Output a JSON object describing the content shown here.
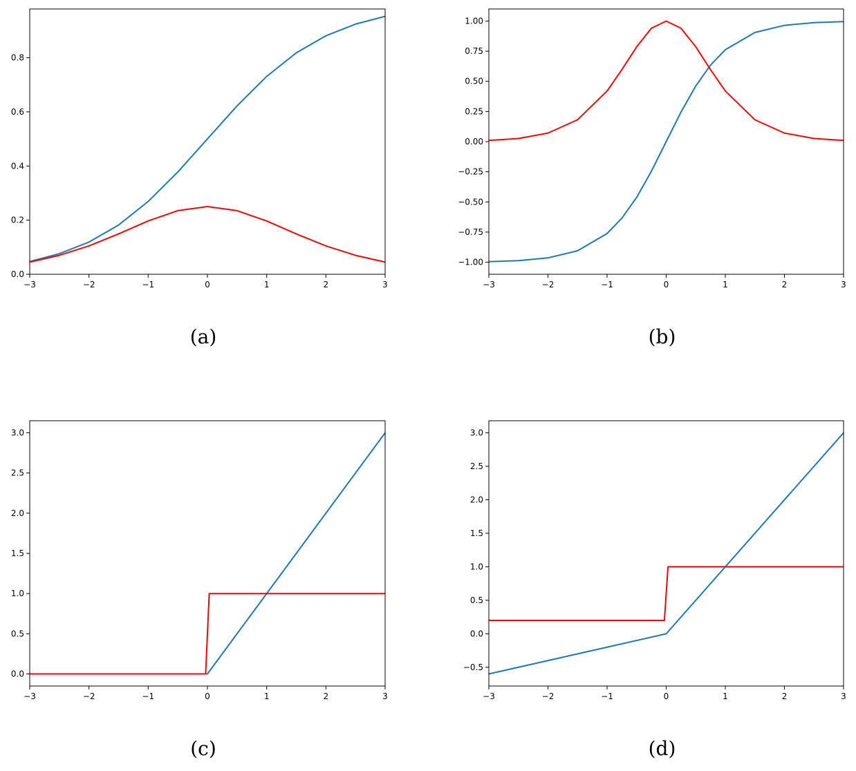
{
  "chart_data": [
    {
      "type": "line",
      "caption": "(a)",
      "xlim": [
        -3,
        3
      ],
      "ylim": [
        0,
        0.98
      ],
      "xticks": [
        -3,
        -2,
        -1,
        0,
        1,
        2,
        3
      ],
      "xtick_labels": [
        "−3",
        "−2",
        "−1",
        "0",
        "1",
        "2",
        "3"
      ],
      "yticks": [
        0,
        0.2,
        0.4,
        0.6,
        0.8
      ],
      "ytick_labels": [
        "0.0",
        "0.2",
        "0.4",
        "0.6",
        "0.8"
      ],
      "grid": false,
      "series": [
        {
          "color": "#1f77b4",
          "x": [
            -3,
            -2.5,
            -2,
            -1.5,
            -1,
            -0.5,
            0,
            0.5,
            1,
            1.5,
            2,
            2.5,
            3
          ],
          "y": [
            0.047,
            0.076,
            0.119,
            0.182,
            0.269,
            0.378,
            0.5,
            0.622,
            0.731,
            0.818,
            0.881,
            0.924,
            0.953
          ]
        },
        {
          "color": "#ff0000",
          "x": [
            -3,
            -2.5,
            -2,
            -1.5,
            -1,
            -0.5,
            0,
            0.5,
            1,
            1.5,
            2,
            2.5,
            3
          ],
          "y": [
            0.045,
            0.07,
            0.105,
            0.149,
            0.197,
            0.235,
            0.25,
            0.235,
            0.197,
            0.149,
            0.105,
            0.07,
            0.045
          ]
        }
      ]
    },
    {
      "type": "line",
      "caption": "(b)",
      "xlim": [
        -3,
        3
      ],
      "ylim": [
        -1.1,
        1.1
      ],
      "xticks": [
        -3,
        -2,
        -1,
        0,
        1,
        2,
        3
      ],
      "xtick_labels": [
        "−3",
        "−2",
        "−1",
        "0",
        "1",
        "2",
        "3"
      ],
      "yticks": [
        -1,
        -0.75,
        -0.5,
        -0.25,
        0,
        0.25,
        0.5,
        0.75,
        1
      ],
      "ytick_labels": [
        "−1.00",
        "−0.75",
        "−0.50",
        "−0.25",
        "0.00",
        "0.25",
        "0.50",
        "0.75",
        "1.00"
      ],
      "grid": false,
      "series": [
        {
          "color": "#1f77b4",
          "x": [
            -3,
            -2.5,
            -2,
            -1.5,
            -1,
            -0.75,
            -0.5,
            -0.25,
            0,
            0.25,
            0.5,
            0.75,
            1,
            1.5,
            2,
            2.5,
            3
          ],
          "y": [
            -0.995,
            -0.987,
            -0.964,
            -0.905,
            -0.762,
            -0.635,
            -0.462,
            -0.245,
            0,
            0.245,
            0.462,
            0.635,
            0.762,
            0.905,
            0.964,
            0.987,
            0.995
          ]
        },
        {
          "color": "#ff0000",
          "x": [
            -3,
            -2.5,
            -2,
            -1.5,
            -1,
            -0.75,
            -0.5,
            -0.25,
            0,
            0.25,
            0.5,
            0.75,
            1,
            1.5,
            2,
            2.5,
            3
          ],
          "y": [
            0.01,
            0.026,
            0.071,
            0.181,
            0.42,
            0.597,
            0.786,
            0.94,
            1,
            0.94,
            0.786,
            0.597,
            0.42,
            0.181,
            0.071,
            0.026,
            0.01
          ]
        }
      ]
    },
    {
      "type": "line",
      "caption": "(c)",
      "xlim": [
        -3,
        3
      ],
      "ylim": [
        -0.15,
        3.15
      ],
      "xticks": [
        -3,
        -2,
        -1,
        0,
        1,
        2,
        3
      ],
      "xtick_labels": [
        "−3",
        "−2",
        "−1",
        "0",
        "1",
        "2",
        "3"
      ],
      "yticks": [
        0,
        0.5,
        1,
        1.5,
        2,
        2.5,
        3
      ],
      "ytick_labels": [
        "0.0",
        "0.5",
        "1.0",
        "1.5",
        "2.0",
        "2.5",
        "3.0"
      ],
      "grid": false,
      "series": [
        {
          "color": "#1f77b4",
          "x": [
            -3,
            0,
            3
          ],
          "y": [
            0,
            0,
            3
          ]
        },
        {
          "color": "#ff0000",
          "x": [
            -3,
            -0.03,
            0.03,
            3
          ],
          "y": [
            0,
            0,
            1,
            1
          ]
        }
      ]
    },
    {
      "type": "line",
      "caption": "(d)",
      "xlim": [
        -3,
        3
      ],
      "ylim": [
        -0.78,
        3.18
      ],
      "xticks": [
        -3,
        -2,
        -1,
        0,
        1,
        2,
        3
      ],
      "xtick_labels": [
        "−3",
        "−2",
        "−1",
        "0",
        "1",
        "2",
        "3"
      ],
      "yticks": [
        -0.5,
        0,
        0.5,
        1,
        1.5,
        2,
        2.5,
        3
      ],
      "ytick_labels": [
        "−0.5",
        "0.0",
        "0.5",
        "1.0",
        "1.5",
        "2.0",
        "2.5",
        "3.0"
      ],
      "grid": false,
      "series": [
        {
          "color": "#1f77b4",
          "x": [
            -3,
            0,
            3
          ],
          "y": [
            -0.6,
            0,
            3
          ]
        },
        {
          "color": "#ff0000",
          "x": [
            -3,
            -0.03,
            0.03,
            3
          ],
          "y": [
            0.2,
            0.2,
            1,
            1
          ]
        }
      ]
    }
  ]
}
